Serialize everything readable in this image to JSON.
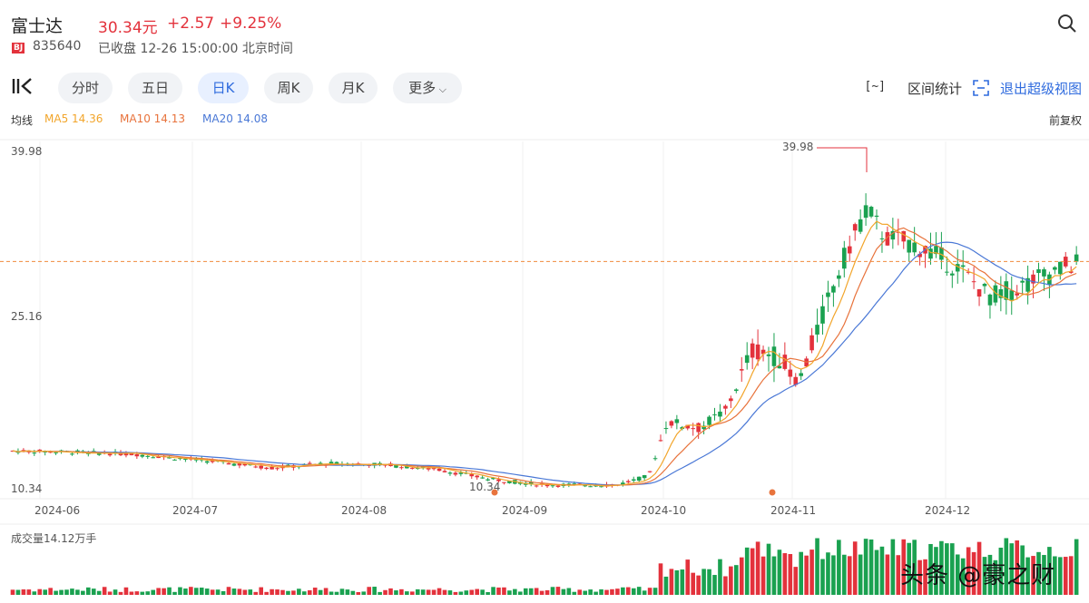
{
  "header": {
    "stock_name": "富士达",
    "price": "30.34元",
    "change": "+2.57",
    "change_pct": "+9.25%",
    "exchange_badge": "BJ",
    "code": "835640",
    "status": "已收盘 12-26 15:00:00 北京时间"
  },
  "toolbar": {
    "tabs": [
      {
        "label": "分时"
      },
      {
        "label": "五日"
      },
      {
        "label": "日K"
      },
      {
        "label": "周K"
      },
      {
        "label": "月K"
      },
      {
        "label": "更多"
      }
    ],
    "active_tab": "日K",
    "range_stats_icon": "[~]",
    "range_stats": "区间统计",
    "exit_view": "退出超级视图"
  },
  "ma": {
    "label": "均线",
    "ma5": "MA5 14.36",
    "ma10": "MA10 14.13",
    "ma20": "MA20 14.08",
    "adjust": "前复权",
    "colors": {
      "ma5": "#f2a52b",
      "ma10": "#e8733c",
      "ma20": "#4a78d6"
    }
  },
  "colors": {
    "up": "#e3323c",
    "down": "#1aa150",
    "accent": "#2f6bde"
  },
  "chart_data": {
    "type": "candlestick",
    "y_ticks": [
      "39.98",
      "25.16",
      "10.34"
    ],
    "ylim": [
      10.34,
      39.98
    ],
    "x_labels": [
      "2024-06",
      "2024-07",
      "2024-08",
      "2024-09",
      "2024-10",
      "2024-11",
      "2024-12"
    ],
    "high_annotation": "39.98",
    "low_annotation": "10.34",
    "last_close": 30.34,
    "volume_label": "成交量14.12万手"
  },
  "watermark": "头条 @豪之财"
}
